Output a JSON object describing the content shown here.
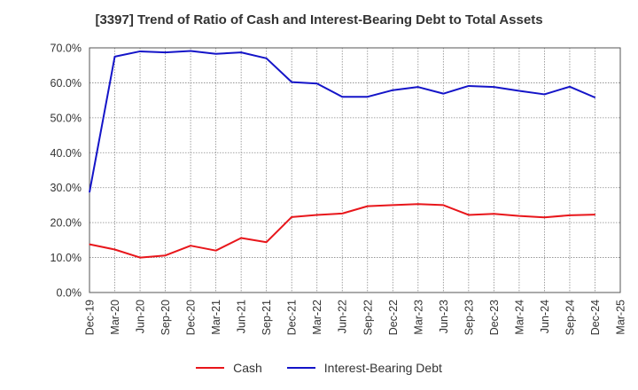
{
  "chart_data": {
    "type": "line",
    "title": "[3397]  Trend of Ratio of Cash and Interest-Bearing Debt to Total Assets",
    "xlabel": "",
    "ylabel": "",
    "ylim": [
      0,
      70
    ],
    "yticks": [
      "0.0%",
      "10.0%",
      "20.0%",
      "30.0%",
      "40.0%",
      "50.0%",
      "60.0%",
      "70.0%"
    ],
    "x": [
      "Dec-19",
      "Mar-20",
      "Jun-20",
      "Sep-20",
      "Dec-20",
      "Mar-21",
      "Jun-21",
      "Sep-21",
      "Dec-21",
      "Mar-22",
      "Jun-22",
      "Sep-22",
      "Dec-22",
      "Mar-23",
      "Jun-23",
      "Sep-23",
      "Dec-23",
      "Mar-24",
      "Jun-24",
      "Sep-24",
      "Dec-24",
      "Mar-25"
    ],
    "grid": true,
    "legend_position": "bottom",
    "series": [
      {
        "name": "Cash",
        "color": "#e8161b",
        "values": [
          13.8,
          12.3,
          10.0,
          10.6,
          13.4,
          12.0,
          15.6,
          14.4,
          21.6,
          22.2,
          22.6,
          24.7,
          25.0,
          25.3,
          25.0,
          22.2,
          22.5,
          21.9,
          21.5,
          22.1,
          22.3,
          null
        ]
      },
      {
        "name": "Interest-Bearing Debt",
        "color": "#1414c8",
        "values": [
          28.7,
          67.5,
          69.0,
          68.7,
          69.1,
          68.3,
          68.7,
          67.0,
          60.2,
          59.8,
          56.0,
          56.0,
          57.9,
          58.8,
          56.9,
          59.1,
          58.8,
          57.7,
          56.7,
          58.9,
          55.8,
          null
        ]
      }
    ]
  }
}
